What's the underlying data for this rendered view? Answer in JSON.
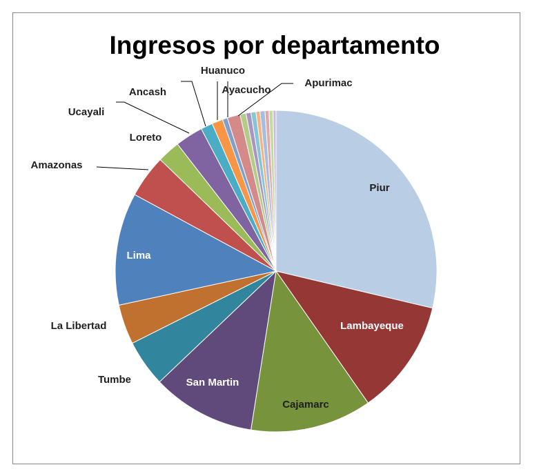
{
  "chart_data": {
    "type": "pie",
    "title": "Ingresos por departamento",
    "categories": [
      "Piur",
      "Lambayeque",
      "Cajamarc",
      "San Martin",
      "Tumbe",
      "La Libertad",
      "Lima",
      "Amazonas",
      "Loreto",
      "Ucayali",
      "Ancash",
      "Huanuco",
      "Ayacucho",
      "Apurimac",
      null,
      null,
      null,
      null,
      null,
      null,
      null,
      null
    ],
    "values": [
      28.7,
      11.6,
      12.2,
      10.4,
      4.7,
      4.0,
      11.3,
      4.3,
      2.3,
      2.8,
      1.2,
      1.1,
      0.5,
      1.3,
      0.6,
      0.5,
      0.5,
      0.4,
      0.5,
      0.4,
      0.4,
      0.3
    ],
    "colors": [
      "#b9cde5",
      "#953735",
      "#77933c",
      "#604a7b",
      "#31859c",
      "#c0702f",
      "#4f81bd",
      "#c0504d",
      "#9bbb59",
      "#8064a2",
      "#4bacc6",
      "#f79646",
      "#7f9fcf",
      "#d48a88",
      "#b3cc86",
      "#a995c4",
      "#86c5d6",
      "#f9b27d",
      "#a6bde0",
      "#e0a8a6",
      "#c6d9a4",
      "#c8bcd9"
    ]
  }
}
